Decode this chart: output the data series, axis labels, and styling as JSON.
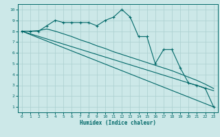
{
  "xlabel": "Humidex (Indice chaleur)",
  "bg_color": "#cce8e8",
  "grid_color": "#aacfcf",
  "line_color": "#006868",
  "spine_color": "#006868",
  "xlim": [
    -0.5,
    23.5
  ],
  "ylim": [
    0.5,
    10.5
  ],
  "xticks": [
    0,
    1,
    2,
    3,
    4,
    5,
    6,
    7,
    8,
    9,
    10,
    11,
    12,
    13,
    14,
    15,
    16,
    17,
    18,
    19,
    20,
    21,
    22,
    23
  ],
  "yticks": [
    1,
    2,
    3,
    4,
    5,
    6,
    7,
    8,
    9,
    10
  ],
  "line1_x": [
    0,
    1,
    2,
    3,
    4,
    5,
    6,
    7,
    8,
    9,
    10,
    11,
    12,
    13,
    14,
    15,
    16,
    17,
    18,
    19,
    20,
    21,
    22,
    23
  ],
  "line1_y": [
    8.0,
    8.0,
    8.0,
    8.5,
    9.0,
    8.8,
    8.8,
    8.8,
    8.8,
    8.5,
    9.0,
    9.3,
    10.0,
    9.3,
    7.5,
    7.5,
    5.0,
    6.3,
    6.3,
    4.6,
    3.2,
    3.0,
    2.7,
    1.0
  ],
  "line2_x": [
    0,
    1,
    2,
    3,
    4,
    5,
    6,
    7,
    8,
    9,
    10,
    11,
    12,
    13,
    14,
    15,
    16,
    17,
    18,
    19,
    20,
    21,
    22,
    23
  ],
  "line2_y": [
    8.0,
    8.0,
    8.05,
    8.2,
    8.0,
    7.75,
    7.5,
    7.2,
    6.95,
    6.65,
    6.4,
    6.1,
    5.85,
    5.6,
    5.35,
    5.1,
    4.85,
    4.6,
    4.35,
    4.05,
    3.75,
    3.45,
    3.1,
    2.7
  ],
  "line3_x": [
    0,
    23
  ],
  "line3_y": [
    8.0,
    1.0
  ],
  "line4_x": [
    0,
    23
  ],
  "line4_y": [
    8.0,
    2.5
  ]
}
